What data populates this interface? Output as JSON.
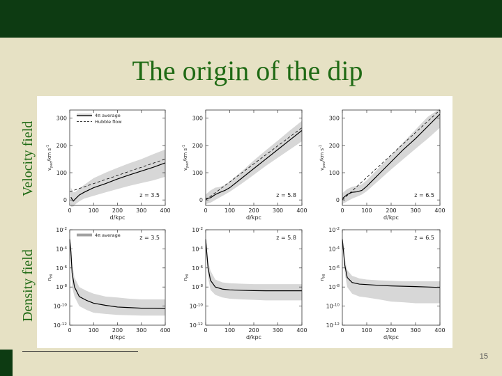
{
  "slide": {
    "title": "The origin of the dip",
    "page_number": "15",
    "side_labels": {
      "top": "Velocity field",
      "bottom": "Density field"
    }
  },
  "colors": {
    "background": "#e6e1c4",
    "topbar": "#0d3b12",
    "accent_text": "#1f6a14",
    "bottom_bar": "#0d3b12",
    "band": "#d7d7d7",
    "line": "#000000"
  },
  "chart_data": [
    {
      "type": "line",
      "row": "velocity",
      "xlabel": "d/kpc",
      "ylabel": "v_{pec}/km s^{-1}",
      "xlim": [
        0,
        400
      ],
      "ylim": [
        -20,
        330
      ],
      "xticks": [
        "0",
        "100",
        "200",
        "300",
        "400"
      ],
      "yticks": [
        "0",
        "100",
        "200",
        "300"
      ],
      "annotation": "z = 3.5",
      "legend": [
        "4π average",
        "Hubble flow"
      ],
      "series": [
        {
          "name": "4π average",
          "x": [
            5,
            15,
            25,
            40,
            60,
            100,
            150,
            200,
            250,
            300,
            350,
            400
          ],
          "values": [
            10,
            -4,
            5,
            18,
            28,
            45,
            60,
            77,
            92,
            106,
            120,
            136
          ],
          "band_lower": [
            -25,
            -24,
            -15,
            -5,
            5,
            15,
            28,
            40,
            52,
            62,
            72,
            85
          ],
          "band_upper": [
            45,
            28,
            30,
            42,
            55,
            80,
            100,
            118,
            135,
            150,
            168,
            185
          ]
        },
        {
          "name": "Hubble flow",
          "x": [
            0,
            400
          ],
          "values": [
            30,
            150
          ]
        }
      ]
    },
    {
      "type": "line",
      "row": "velocity",
      "xlabel": "d/kpc",
      "ylabel": "v_{pec}/km s^{-1}",
      "xlim": [
        0,
        400
      ],
      "ylim": [
        -20,
        330
      ],
      "xticks": [
        "0",
        "100",
        "200",
        "300",
        "400"
      ],
      "yticks": [
        "0",
        "100",
        "200",
        "300"
      ],
      "annotation": "z = 5.8",
      "series": [
        {
          "name": "4π average",
          "x": [
            0,
            20,
            40,
            60,
            80,
            100,
            150,
            200,
            250,
            300,
            350,
            400
          ],
          "values": [
            5,
            8,
            20,
            28,
            35,
            45,
            80,
            115,
            150,
            185,
            220,
            255
          ],
          "band_lower": [
            -15,
            -10,
            0,
            10,
            20,
            30,
            60,
            92,
            125,
            155,
            185,
            215
          ],
          "band_upper": [
            20,
            35,
            45,
            48,
            55,
            68,
            105,
            145,
            182,
            218,
            255,
            290
          ]
        },
        {
          "name": "Hubble flow",
          "x": [
            0,
            400
          ],
          "values": [
            0,
            265
          ]
        }
      ]
    },
    {
      "type": "line",
      "row": "velocity",
      "xlabel": "d/kpc",
      "ylabel": "v_{pec}/km s^{-1}",
      "xlim": [
        0,
        400
      ],
      "ylim": [
        -20,
        330
      ],
      "xticks": [
        "0",
        "100",
        "200",
        "300",
        "400"
      ],
      "yticks": [
        "0",
        "100",
        "200",
        "300"
      ],
      "annotation": "z = 6.5",
      "series": [
        {
          "name": "4π average",
          "x": [
            0,
            20,
            40,
            60,
            80,
            100,
            150,
            200,
            250,
            300,
            350,
            400
          ],
          "values": [
            5,
            20,
            28,
            30,
            35,
            50,
            95,
            140,
            185,
            225,
            270,
            315
          ],
          "band_lower": [
            -15,
            -5,
            5,
            12,
            20,
            32,
            72,
            112,
            150,
            188,
            225,
            265
          ],
          "band_upper": [
            25,
            40,
            48,
            52,
            58,
            72,
            118,
            165,
            212,
            258,
            305,
            335
          ]
        },
        {
          "name": "Hubble flow",
          "x": [
            0,
            400
          ],
          "values": [
            0,
            330
          ]
        }
      ]
    },
    {
      "type": "line",
      "row": "density",
      "xlabel": "d/kpc",
      "ylabel": "n_{HI}",
      "yscale": "log",
      "xlim": [
        0,
        400
      ],
      "ylim": [
        1e-12,
        0.01
      ],
      "xticks": [
        "0",
        "100",
        "200",
        "300",
        "400"
      ],
      "yticks": [
        "10^{-12}",
        "10^{-10}",
        "10^{-8}",
        "10^{-6}",
        "10^{-4}",
        "10^{-2}"
      ],
      "annotation": "z = 3.5",
      "legend": [
        "4π average"
      ],
      "series": [
        {
          "name": "4π average",
          "x": [
            0,
            5,
            10,
            20,
            40,
            70,
            100,
            150,
            200,
            250,
            300,
            350,
            400
          ],
          "values": [
            0.001,
            5e-05,
            3e-07,
            1e-08,
            1e-09,
            4e-10,
            2e-10,
            1.2e-10,
            8e-11,
            7e-11,
            6e-11,
            6e-11,
            5.5e-11
          ],
          "band_lower": [
            0.0003,
            1e-05,
            1e-08,
            1e-09,
            1e-10,
            4e-11,
            2e-11,
            1.5e-11,
            1.2e-11,
            1.1e-11,
            1e-11,
            1e-11,
            1e-11
          ],
          "band_upper": [
            0.003,
            0.0002,
            3e-06,
            1e-07,
            1e-08,
            4e-09,
            2e-09,
            1e-09,
            8e-10,
            6e-10,
            5e-10,
            5e-10,
            5e-10
          ]
        }
      ]
    },
    {
      "type": "line",
      "row": "density",
      "xlabel": "d/kpc",
      "ylabel": "n_{HI}",
      "yscale": "log",
      "xlim": [
        0,
        400
      ],
      "ylim": [
        1e-12,
        0.01
      ],
      "xticks": [
        "0",
        "100",
        "200",
        "300",
        "400"
      ],
      "yticks": [
        "10^{-12}",
        "10^{-10}",
        "10^{-8}",
        "10^{-6}",
        "10^{-4}",
        "10^{-2}"
      ],
      "annotation": "z = 5.8",
      "series": [
        {
          "name": "4π average",
          "x": [
            0,
            5,
            10,
            20,
            40,
            70,
            100,
            150,
            200,
            250,
            300,
            350,
            400
          ],
          "values": [
            0.001,
            3e-05,
            1e-06,
            5e-08,
            1e-08,
            6e-09,
            5e-09,
            4.5e-09,
            4.2e-09,
            4e-09,
            4e-09,
            4e-09,
            4e-09
          ],
          "band_lower": [
            0.0003,
            5e-06,
            1e-07,
            5e-09,
            1.5e-09,
            8e-10,
            6e-10,
            5e-10,
            4.5e-10,
            4e-10,
            4e-10,
            4e-10,
            4e-10
          ],
          "band_upper": [
            0.003,
            0.0001,
            5e-06,
            5e-07,
            6e-08,
            3e-08,
            2.5e-08,
            2.2e-08,
            2e-08,
            2e-08,
            2e-08,
            2e-08,
            2e-08
          ]
        }
      ]
    },
    {
      "type": "line",
      "row": "density",
      "xlabel": "d/kpc",
      "ylabel": "n_{HI}",
      "yscale": "log",
      "xlim": [
        0,
        400
      ],
      "ylim": [
        1e-12,
        0.01
      ],
      "xticks": [
        "0",
        "100",
        "200",
        "300",
        "400"
      ],
      "yticks": [
        "10^{-12}",
        "10^{-10}",
        "10^{-8}",
        "10^{-6}",
        "10^{-4}",
        "10^{-2}"
      ],
      "annotation": "z = 6.5",
      "series": [
        {
          "name": "4π average",
          "x": [
            0,
            5,
            10,
            20,
            40,
            70,
            100,
            150,
            200,
            250,
            300,
            350,
            400
          ],
          "values": [
            0.001,
            5e-05,
            2e-06,
            1e-07,
            3e-08,
            2e-08,
            1.8e-08,
            1.5e-08,
            1.3e-08,
            1.2e-08,
            1.1e-08,
            1e-08,
            9e-09
          ],
          "band_lower": [
            0.0003,
            1e-05,
            3e-07,
            1e-08,
            2e-09,
            1e-09,
            8e-10,
            5e-10,
            3e-10,
            2.5e-10,
            2e-10,
            2e-10,
            2e-10
          ],
          "band_upper": [
            0.003,
            0.0002,
            1e-05,
            6e-07,
            1.5e-07,
            8e-08,
            6e-08,
            5e-08,
            4.5e-08,
            4e-08,
            4e-08,
            4e-08,
            4e-08
          ]
        }
      ]
    }
  ]
}
